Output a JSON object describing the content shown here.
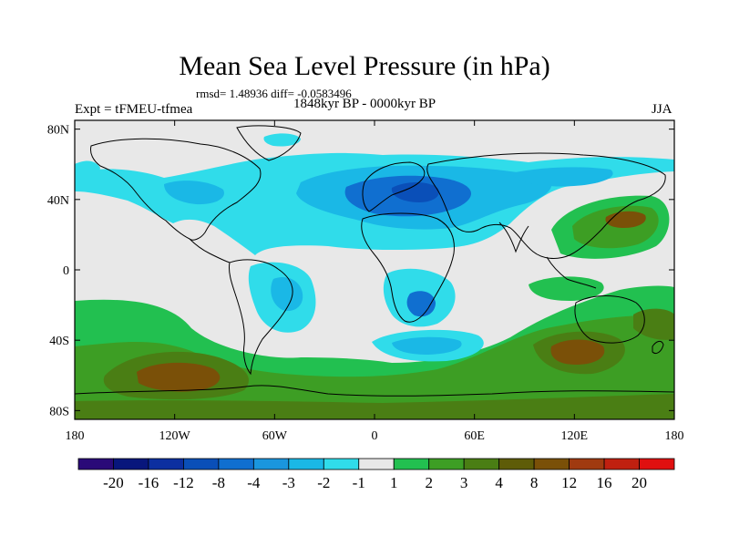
{
  "figure": {
    "title": "Mean Sea Level Pressure (in hPa)",
    "stats": "rmsd= 1.48936 diff= -0.0583496",
    "period": "1848kyr BP - 0000kyr BP",
    "experiment": "Expt = tFMEU-tfmea",
    "season": "JJA"
  },
  "map_axes": {
    "x_ticks": [
      {
        "value": -180,
        "label": "180"
      },
      {
        "value": -120,
        "label": "120W"
      },
      {
        "value": -60,
        "label": "60W"
      },
      {
        "value": 0,
        "label": "0"
      },
      {
        "value": 60,
        "label": "60E"
      },
      {
        "value": 120,
        "label": "120E"
      },
      {
        "value": 180,
        "label": "180"
      }
    ],
    "y_ticks": [
      {
        "value": 80,
        "label": "80N"
      },
      {
        "value": 40,
        "label": "40N"
      },
      {
        "value": 0,
        "label": "0"
      },
      {
        "value": -40,
        "label": "40S"
      },
      {
        "value": -80,
        "label": "80S"
      }
    ]
  },
  "colorbar": {
    "colors": [
      "#2a0a78",
      "#08167c",
      "#0c2fa0",
      "#0a4fb8",
      "#106fd0",
      "#1a96de",
      "#1ab8e6",
      "#30dcea",
      "#e8e8e8",
      "#22c050",
      "#3d9e24",
      "#4a7e14",
      "#5e5c08",
      "#7a5008",
      "#a03a10",
      "#c02010",
      "#e01010"
    ],
    "labels": [
      "-20",
      "-16",
      "-12",
      "-8",
      "-4",
      "-3",
      "-2",
      "-1",
      "1",
      "2",
      "3",
      "4",
      "8",
      "12",
      "16",
      "20"
    ]
  },
  "legend": {
    "land_outline": "#000000",
    "no_change": "#e8e8e8",
    "low_pressure": "#1ab8e6",
    "high_pressure": "#3d9e24"
  }
}
